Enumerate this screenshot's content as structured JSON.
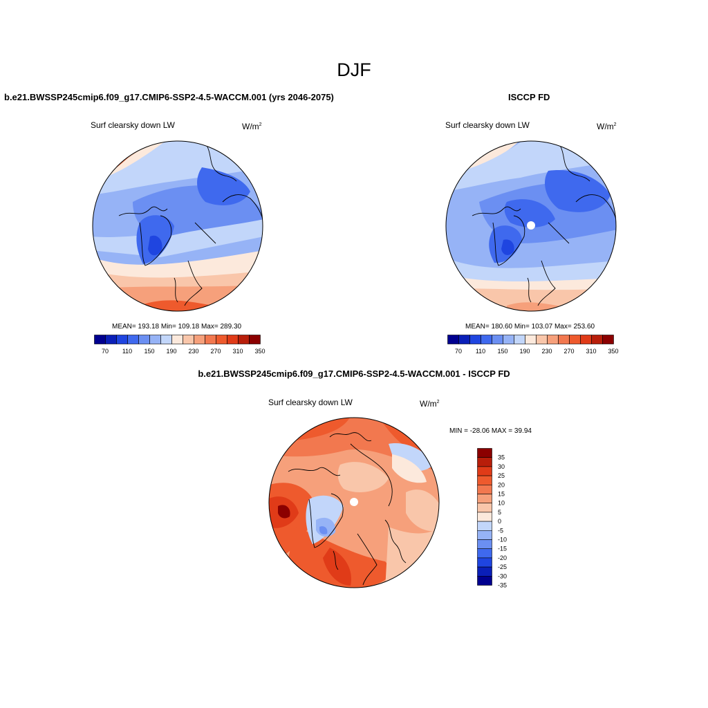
{
  "figure_title": "DJF",
  "panels": [
    {
      "title": "b.e21.BWSSP245cmip6.f09_g17.CMIP6-SSP2-4.5-WACCM.001 (yrs 2046-2075)",
      "variable": "Surf clearsky down LW",
      "units": "W/m",
      "units_exp": "2",
      "stats": "MEAN= 193.18  Min= 109.18  Max= 289.30"
    },
    {
      "title": "ISCCP FD",
      "variable": "Surf clearsky down LW",
      "units": "W/m",
      "units_exp": "2",
      "stats": "MEAN= 180.60  Min= 103.07  Max= 253.60"
    },
    {
      "title": "b.e21.BWSSP245cmip6.f09_g17.CMIP6-SSP2-4.5-WACCM.001 - ISCCP FD",
      "variable": "Surf clearsky down LW",
      "units": "W/m",
      "units_exp": "2",
      "stats": "MIN = -28.06 MAX =  39.94"
    }
  ],
  "colorbar_abs": {
    "labels": [
      "70",
      "110",
      "150",
      "190",
      "230",
      "270",
      "310",
      "350"
    ],
    "colors": [
      "#00008f",
      "#0a1fb8",
      "#1f45e0",
      "#3f69ee",
      "#6b8ff2",
      "#96b3f6",
      "#c2d6fa",
      "#fce9dc",
      "#f9c6aa",
      "#f6a07b",
      "#f2784f",
      "#ee5a2d",
      "#e03b18",
      "#b81e0a",
      "#8b0000"
    ]
  },
  "colorbar_diff": {
    "labels": [
      "35",
      "30",
      "25",
      "20",
      "15",
      "10",
      "5",
      "0",
      "-5",
      "-10",
      "-15",
      "-20",
      "-25",
      "-30",
      "-35"
    ],
    "colors": [
      "#8b0000",
      "#b81e0a",
      "#e03b18",
      "#ee5a2d",
      "#f2784f",
      "#f6a07b",
      "#f9c6aa",
      "#fce9dc",
      "#c2d6fa",
      "#96b3f6",
      "#6b8ff2",
      "#3f69ee",
      "#1f45e0",
      "#0a1fb8",
      "#00008f"
    ]
  }
}
